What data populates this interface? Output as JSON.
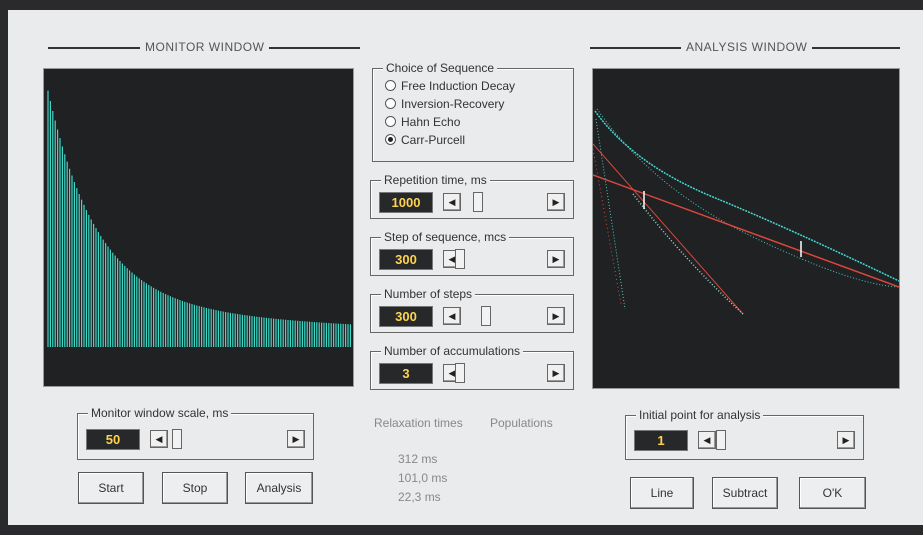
{
  "monitor": {
    "title": "MONITOR WINDOW",
    "scale": {
      "label": "Monitor window scale, ms",
      "value": 50
    },
    "buttons": [
      "Start",
      "Stop",
      "Analysis"
    ]
  },
  "sequence": {
    "label": "Choice of Sequence",
    "options": [
      "Free Induction Decay",
      "Inversion-Recovery",
      "Hahn Echo",
      "Carr-Purcell"
    ],
    "selected": 3
  },
  "parameters": [
    {
      "label": "Repetition time, ms",
      "value": 1000
    },
    {
      "label": "Step of sequence, mcs",
      "value": 300
    },
    {
      "label": "Number of steps",
      "value": 300
    },
    {
      "label": "Number of accumulations",
      "value": 3
    }
  ],
  "results": {
    "headers": [
      "Relaxation times",
      "Populations"
    ],
    "times": [
      "312 ms",
      "101,0 ms",
      "22,3 ms"
    ]
  },
  "analysis": {
    "title": "ANALYSIS WINDOW",
    "initial_point": {
      "label": "Initial point for analysis",
      "value": 1
    },
    "buttons": [
      "Line",
      "Subtract",
      "O'K"
    ]
  }
}
